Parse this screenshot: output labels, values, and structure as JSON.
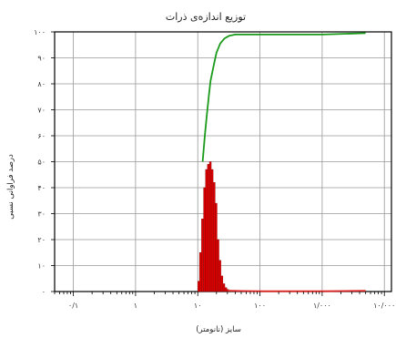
{
  "chart_data": {
    "type": "bar+line",
    "title": "توزیع اندازه‌ی ذرات",
    "xlabel": "سایز (نانومتر)",
    "ylabel": "درصد فراوانی نسبی",
    "x_scale": "log",
    "xlim": [
      0.05,
      13000
    ],
    "ylim": [
      0,
      100
    ],
    "x_ticks": [
      {
        "value": 0.1,
        "label": "۰/۱"
      },
      {
        "value": 1,
        "label": "۱"
      },
      {
        "value": 10,
        "label": "۱۰"
      },
      {
        "value": 100,
        "label": "۱۰۰"
      },
      {
        "value": 1000,
        "label": "۱/۰۰۰"
      },
      {
        "value": 10000,
        "label": "۱۰/۰۰۰"
      }
    ],
    "y_ticks": [
      {
        "value": 0,
        "label": "۰"
      },
      {
        "value": 10,
        "label": "۱۰"
      },
      {
        "value": 20,
        "label": "۲۰"
      },
      {
        "value": 30,
        "label": "۳۰"
      },
      {
        "value": 40,
        "label": "۴۰"
      },
      {
        "value": 50,
        "label": "۵۰"
      },
      {
        "value": 60,
        "label": "۶۰"
      },
      {
        "value": 70,
        "label": "۷۰"
      },
      {
        "value": 80,
        "label": "۸۰"
      },
      {
        "value": 90,
        "label": "۹۰"
      },
      {
        "value": 100,
        "label": "۱۰۰"
      }
    ],
    "grid": true,
    "bars": {
      "color": "#e00000",
      "x": [
        10.0,
        10.7,
        11.5,
        12.4,
        13.3,
        14.3,
        15.4,
        16.5,
        17.8,
        19.1,
        20.5,
        22.0,
        23.7,
        25.5,
        27.4,
        29.4
      ],
      "values": [
        4,
        15,
        28,
        40,
        47,
        49,
        50,
        47,
        42,
        34,
        20,
        12,
        6,
        3,
        1.5,
        0.8
      ]
    },
    "series": [
      {
        "name": "",
        "color": "#1a9a1a",
        "x": [
          12,
          13,
          14,
          15,
          16,
          18,
          20,
          23,
          27,
          32,
          40,
          55,
          100,
          1000,
          5000
        ],
        "values": [
          50,
          60,
          68,
          75,
          81,
          87,
          92,
          95.5,
          97.5,
          98.5,
          99,
          99,
          99,
          99,
          99.5
        ]
      },
      {
        "name": "",
        "color": "#dd2222",
        "x": [
          30,
          50,
          100,
          1000,
          5000
        ],
        "values": [
          0.3,
          0.2,
          0.1,
          0.1,
          0.3
        ]
      }
    ]
  }
}
